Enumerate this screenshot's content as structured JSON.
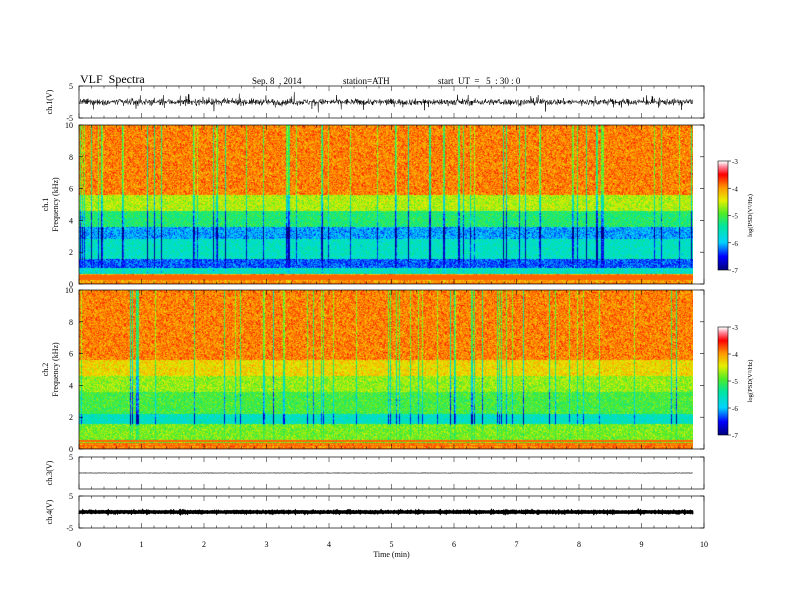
{
  "header": {
    "title": "VLF  Spectra",
    "date": "Sep. 8  , 2014",
    "station": "station=ATH",
    "start": "start  UT  =   5  : 30 : 0"
  },
  "chart_data": {
    "type": "heatmap",
    "xlabel": "Time  (min)",
    "xlim": [
      0,
      10
    ],
    "xticks": [
      "0",
      "1",
      "2",
      "3",
      "4",
      "5",
      "6",
      "7",
      "8",
      "9",
      "10"
    ],
    "data_end_min": 9.82,
    "panels": [
      {
        "kind": "waveform",
        "ylabel": "ch.1(V)",
        "ylim": [
          -5,
          5
        ],
        "yticks": [
          "5",
          "-5"
        ],
        "amplitude_v": 1.7
      },
      {
        "kind": "spectrogram",
        "ylabel": [
          "ch.1",
          "Frequency  (kHz)"
        ],
        "ylim": [
          0,
          10
        ],
        "yticks": [
          "0",
          "2",
          "4",
          "6",
          "8",
          "10"
        ],
        "colorbar": {
          "label": "log(PSD(V²/Hz)",
          "range": [
            -7,
            -3
          ],
          "ticks": [
            "-3",
            "-4",
            "-5",
            "-6",
            "-7"
          ]
        },
        "band_edges_khz": [
          0,
          0.6,
          1.0,
          1.6,
          2.8,
          3.6,
          4.6,
          5.6,
          10
        ],
        "band_levels_log_psd": [
          -4.0,
          -5.6,
          -6.3,
          -5.6,
          -6.1,
          -5.2,
          -4.6,
          -3.9
        ]
      },
      {
        "kind": "spectrogram",
        "ylabel": [
          "ch.2",
          "Frequency  (kHz)"
        ],
        "ylim": [
          0,
          10
        ],
        "yticks": [
          "0",
          "2",
          "4",
          "6",
          "8",
          "10"
        ],
        "colorbar": {
          "label": "log(PSD(V²/Hz)",
          "range": [
            -7,
            -3
          ],
          "ticks": [
            "-3",
            "-4",
            "-5",
            "-6",
            "-7"
          ]
        },
        "band_edges_khz": [
          0,
          0.4,
          1.6,
          2.2,
          3.6,
          4.6,
          5.6,
          10
        ],
        "band_levels_log_psd": [
          -3.9,
          -4.8,
          -5.6,
          -5.0,
          -4.7,
          -4.3,
          -3.9
        ]
      },
      {
        "kind": "waveform",
        "ylabel": "ch.3(V)",
        "ylim": [
          -5,
          5
        ],
        "yticks": [
          "5"
        ],
        "amplitude_v": 0.1
      },
      {
        "kind": "waveform",
        "ylabel": "ch.4(V)",
        "ylim": [
          -5,
          5
        ],
        "yticks": [
          "5",
          "-5"
        ],
        "amplitude_v": 0.2
      }
    ]
  }
}
